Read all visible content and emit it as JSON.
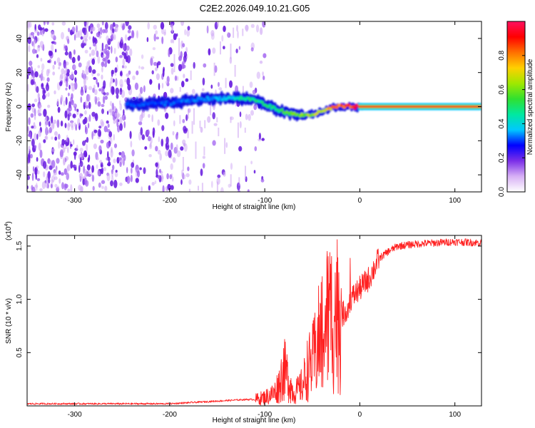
{
  "title": "C2E2.2026.049.10.21.G05",
  "chart_data": [
    {
      "type": "heatmap",
      "name": "spectrogram",
      "xlabel": "Height of straight line (km)",
      "ylabel": "Frequency (Hz)",
      "xlim": [
        -350,
        128
      ],
      "ylim": [
        -50,
        50
      ],
      "xticks": [
        -300,
        -200,
        -100,
        0,
        100
      ],
      "yticks": [
        -40,
        -20,
        0,
        20,
        40
      ],
      "colorbar": {
        "label": "Normalized spectral amplitude",
        "range": [
          0,
          1
        ],
        "ticks": [
          "0.0",
          "0.2",
          "0.4",
          "0.6",
          "0.8"
        ],
        "colors": [
          "#ffffff",
          "#d7b0f5",
          "#7b2fe8",
          "#0000ff",
          "#00c8ff",
          "#00e8a0",
          "#30e030",
          "#a0e800",
          "#ffd000",
          "#ff7000",
          "#ff0000",
          "#ff1060"
        ]
      },
      "ridge": {
        "x": [
          -245,
          -200,
          -175,
          -150,
          -125,
          -110,
          -95,
          -80,
          -65,
          -55,
          -45,
          -35,
          -25,
          -15,
          -5,
          0,
          128
        ],
        "frequency_hz": [
          1,
          2,
          4,
          5,
          5,
          4,
          0,
          -3,
          -5,
          -5,
          -4,
          -2,
          0,
          0,
          0,
          0,
          0
        ],
        "amplitude": [
          0.3,
          0.32,
          0.34,
          0.35,
          0.45,
          0.5,
          0.5,
          0.55,
          0.6,
          0.65,
          0.7,
          0.75,
          0.85,
          0.9,
          0.95,
          1.0,
          1.0
        ]
      }
    },
    {
      "type": "line",
      "name": "snr",
      "xlabel": "Height of straight line (km)",
      "ylabel": "SNR (10 * v/v)",
      "y_multiplier": "(x10",
      "y_multiplier_exp": "4",
      "xlim": [
        -350,
        128
      ],
      "ylim": [
        0,
        1.6
      ],
      "xticks": [
        -300,
        -200,
        -100,
        0,
        100
      ],
      "yticks": [
        "0.5",
        "1.0",
        "1.5"
      ],
      "color": "#ff2020",
      "series": [
        {
          "name": "SNR",
          "x": [
            -350,
            -300,
            -250,
            -200,
            -180,
            -160,
            -140,
            -120,
            -110,
            -100,
            -90,
            -85,
            -80,
            -75,
            -70,
            -65,
            -60,
            -55,
            -50,
            -45,
            -40,
            -35,
            -30,
            -25,
            -20,
            -15,
            -10,
            -5,
            0,
            10,
            20,
            30,
            40,
            60,
            80,
            100,
            128
          ],
          "y": [
            0.02,
            0.02,
            0.02,
            0.02,
            0.03,
            0.04,
            0.05,
            0.06,
            0.06,
            0.08,
            0.12,
            0.2,
            0.35,
            0.25,
            0.12,
            0.15,
            0.2,
            0.35,
            0.4,
            0.55,
            0.7,
            0.82,
            0.85,
            0.9,
            0.85,
            0.88,
            1.0,
            1.05,
            1.1,
            1.2,
            1.38,
            1.45,
            1.5,
            1.52,
            1.53,
            1.54,
            1.53
          ]
        }
      ]
    }
  ]
}
